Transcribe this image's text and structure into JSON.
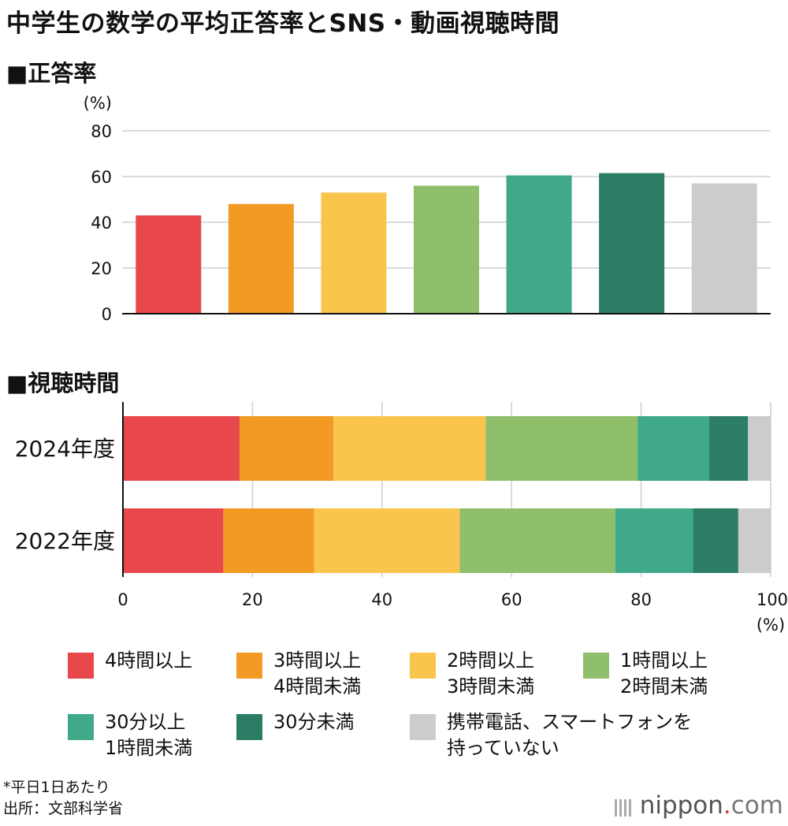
{
  "title": "中学生の数学の平均正答率とSNS・動画視聴時間",
  "section1": "■正答率",
  "section2": "■視聴時間",
  "colors": {
    "c1": "#e8474b",
    "c2": "#f39a25",
    "c3": "#f9c54d",
    "c4": "#8fbf6b",
    "c5": "#3fa98a",
    "c6": "#2c7d66",
    "c7": "#cccccc",
    "grid": "#cfcfcf"
  },
  "chart_data": [
    {
      "type": "bar",
      "title": "■正答率",
      "ylabel": "(%)",
      "ylim": [
        0,
        80
      ],
      "yticks": [
        "0",
        "20",
        "40",
        "60",
        "80"
      ],
      "categories": [
        "4時間以上",
        "3時間以上4時間未満",
        "2時間以上3時間未満",
        "1時間以上2時間未満",
        "30分以上1時間未満",
        "30分未満",
        "携帯電話、スマートフォンを持っていない"
      ],
      "values": [
        43,
        48,
        53,
        56,
        60.5,
        61.5,
        57
      ]
    },
    {
      "type": "bar",
      "orientation": "horizontal-stacked",
      "title": "■視聴時間",
      "xlabel": "(%)",
      "xlim": [
        0,
        100
      ],
      "xticks": [
        "0",
        "20",
        "40",
        "60",
        "80",
        "100"
      ],
      "categories": [
        "2024年度",
        "2022年度"
      ],
      "series": [
        {
          "name": "4時間以上",
          "values": [
            18,
            15.5
          ]
        },
        {
          "name": "3時間以上4時間未満",
          "values": [
            14.5,
            14
          ]
        },
        {
          "name": "2時間以上3時間未満",
          "values": [
            23.5,
            22.5
          ]
        },
        {
          "name": "1時間以上2時間未満",
          "values": [
            23.5,
            24
          ]
        },
        {
          "name": "30分以上1時間未満",
          "values": [
            11,
            12
          ]
        },
        {
          "name": "30分未満",
          "values": [
            6,
            7
          ]
        },
        {
          "name": "携帯電話、スマートフォンを持っていない",
          "values": [
            3.5,
            5
          ]
        }
      ]
    }
  ],
  "legend": [
    {
      "text": "4時間以上"
    },
    {
      "text": "3時間以上\n4時間未満"
    },
    {
      "text": "2時間以上\n3時間未満"
    },
    {
      "text": "1時間以上\n2時間未満"
    },
    {
      "text": "30分以上\n1時間未満"
    },
    {
      "text": "30分未満"
    },
    {
      "text": "携帯電話、スマートフォンを\n持っていない"
    }
  ],
  "footnote": {
    "line1": "*平日1日あたり",
    "line2": "出所：文部科学省"
  },
  "logo": {
    "name": "nippon",
    "dot": ".",
    "tld": "com"
  }
}
